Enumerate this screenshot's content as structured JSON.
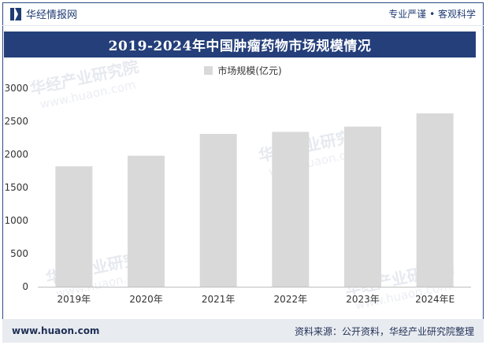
{
  "header": {
    "brand_name": "华经情报网",
    "tagline": "专业严谨 • 客观科学"
  },
  "title": "2019-2024年中国肿瘤药物市场规模情况",
  "footer": {
    "site": "www.huaon.com",
    "source": "资料来源：公开资料，华经产业研究院整理"
  },
  "watermark": {
    "cn": "华经产业研究院",
    "en": "www.huaon.com"
  },
  "colors": {
    "title_bg": "#243f7a",
    "bar": "#d9d9d9",
    "footer_bg": "#e8ebf0"
  },
  "chart_data": {
    "type": "bar",
    "categories": [
      "2019年",
      "2020年",
      "2021年",
      "2022年",
      "2023年",
      "2024年E"
    ],
    "series": [
      {
        "name": "市场规模(亿元)",
        "values": [
          1820,
          1980,
          2310,
          2340,
          2420,
          2620
        ]
      }
    ],
    "ylim": [
      0,
      3000
    ],
    "yticks": [
      "0",
      "500",
      "1000",
      "1500",
      "2000",
      "2500",
      "3000"
    ],
    "grid": false,
    "legend": "top-center"
  }
}
